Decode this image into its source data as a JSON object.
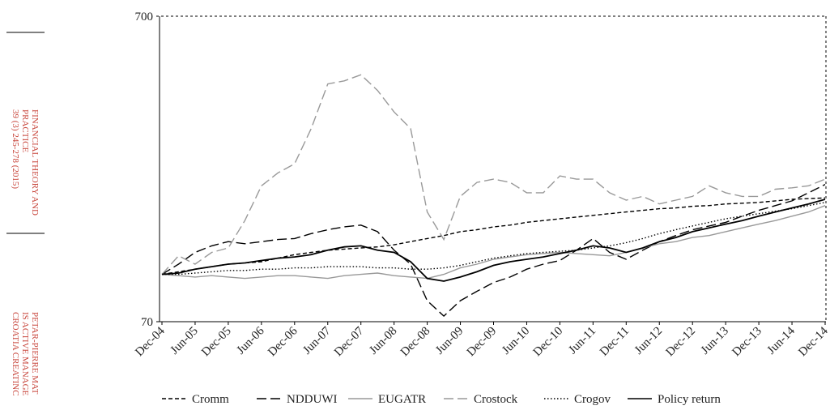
{
  "margin": {
    "journal": [
      "FINANCIAL THEORY AND",
      "PRACTICE",
      "39 (3) 245-278 (2015)"
    ],
    "author": [
      "PETAR-PIERRE MAT",
      "IS ACTIVE MANAGE",
      "CROATIA CREATINC"
    ]
  },
  "chart_data": {
    "type": "line",
    "log_scale": true,
    "categories": [
      "Dec-04",
      null,
      "Jun-05",
      null,
      "Dec-05",
      null,
      "Jun-06",
      null,
      "Dec-06",
      null,
      "Jun-07",
      null,
      "Dec-07",
      null,
      "Jun-08",
      null,
      "Dec-08",
      null,
      "Jun-09",
      null,
      "Dec-09",
      null,
      "Jun-10",
      null,
      "Dec-10",
      null,
      "Jun-11",
      null,
      "Dec-11",
      null,
      "Jun-12",
      null,
      "Dec-12",
      null,
      "Jun-13",
      null,
      "Dec-13",
      null,
      "Jun-14",
      null,
      "Dec-14"
    ],
    "ylim": [
      70,
      700
    ],
    "yticks": [
      70,
      700
    ],
    "legend": "bottom",
    "series": [
      {
        "name": "Cromm",
        "color": "#000000",
        "style": "dashed",
        "values": [
          100,
          102,
          104,
          106,
          108,
          109,
          110,
          113,
          116,
          118,
          120,
          121,
          122,
          123,
          125,
          128,
          131,
          134,
          138,
          140,
          143,
          145,
          148,
          150,
          152,
          154,
          156,
          158,
          160,
          162,
          164,
          165,
          167,
          168,
          170,
          171,
          172,
          174,
          176,
          177,
          178
        ]
      },
      {
        "name": "NDDUWI",
        "color": "#000000",
        "style": "longdash",
        "values": [
          100,
          108,
          118,
          124,
          128,
          126,
          128,
          130,
          131,
          136,
          140,
          143,
          145,
          138,
          120,
          108,
          82,
          73,
          82,
          88,
          94,
          98,
          104,
          108,
          111,
          120,
          131,
          118,
          112,
          120,
          128,
          134,
          140,
          144,
          148,
          155,
          162,
          168,
          174,
          185,
          197
        ]
      },
      {
        "name": "EUGATR",
        "color": "#999999",
        "style": "solid",
        "values": [
          100,
          99,
          98,
          99,
          98,
          97,
          98,
          99,
          99,
          98,
          97,
          99,
          100,
          101,
          99,
          98,
          97,
          100,
          105,
          108,
          112,
          114,
          116,
          117,
          118,
          117,
          116,
          115,
          118,
          122,
          126,
          128,
          132,
          134,
          138,
          142,
          146,
          150,
          155,
          160,
          168
        ]
      },
      {
        "name": "Crostock",
        "color": "#999999",
        "style": "longdash",
        "values": [
          100,
          115,
          108,
          118,
          122,
          150,
          195,
          215,
          230,
          300,
          420,
          430,
          450,
          400,
          340,
          300,
          160,
          130,
          180,
          200,
          205,
          200,
          185,
          185,
          210,
          205,
          205,
          185,
          175,
          180,
          170,
          175,
          180,
          195,
          185,
          180,
          180,
          190,
          192,
          195,
          205
        ]
      },
      {
        "name": "Crogov",
        "color": "#000000",
        "style": "dotted",
        "values": [
          100,
          100,
          101,
          102,
          103,
          103,
          104,
          104,
          105,
          105,
          106,
          106,
          106,
          105,
          105,
          104,
          104,
          105,
          107,
          110,
          113,
          115,
          117,
          118,
          119,
          120,
          122,
          124,
          127,
          131,
          136,
          140,
          144,
          148,
          152,
          155,
          158,
          161,
          164,
          168,
          172
        ]
      },
      {
        "name": "Policy return",
        "color": "#000000",
        "style": "solid",
        "values": [
          100,
          101,
          104,
          106,
          108,
          109,
          111,
          113,
          114,
          116,
          120,
          123,
          124,
          120,
          118,
          110,
          97,
          95,
          98,
          102,
          107,
          110,
          112,
          114,
          117,
          120,
          124,
          122,
          118,
          122,
          128,
          132,
          138,
          142,
          146,
          150,
          155,
          160,
          165,
          170,
          176
        ]
      }
    ]
  }
}
